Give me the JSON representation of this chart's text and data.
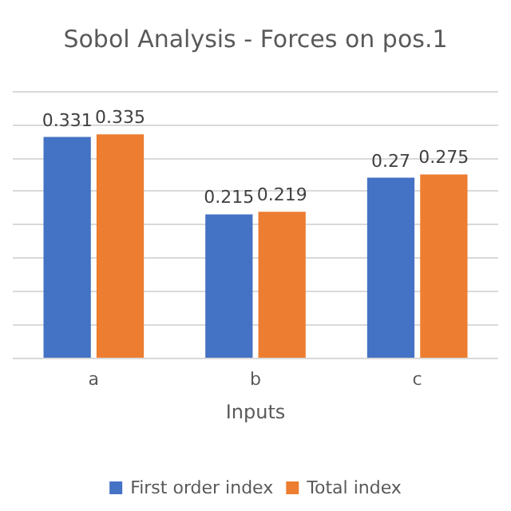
{
  "chart_data": {
    "type": "bar",
    "title": "Sobol Analysis - Forces on pos.1",
    "xlabel": "Inputs",
    "categories": [
      "a",
      "b",
      "c"
    ],
    "series": [
      {
        "name": "First order index",
        "color": "#4472c4",
        "values": [
          0.331,
          0.215,
          0.27
        ]
      },
      {
        "name": "Total index",
        "color": "#ed7d31",
        "values": [
          0.335,
          0.219,
          0.275
        ]
      }
    ],
    "ylim": [
      0,
      0.4
    ],
    "yticks": [
      0,
      0.05,
      0.1,
      0.15,
      0.2,
      0.25,
      0.3,
      0.35,
      0.4
    ],
    "grid": "y",
    "tick_labels": "x",
    "data_labels": true,
    "legend": "bottom"
  }
}
